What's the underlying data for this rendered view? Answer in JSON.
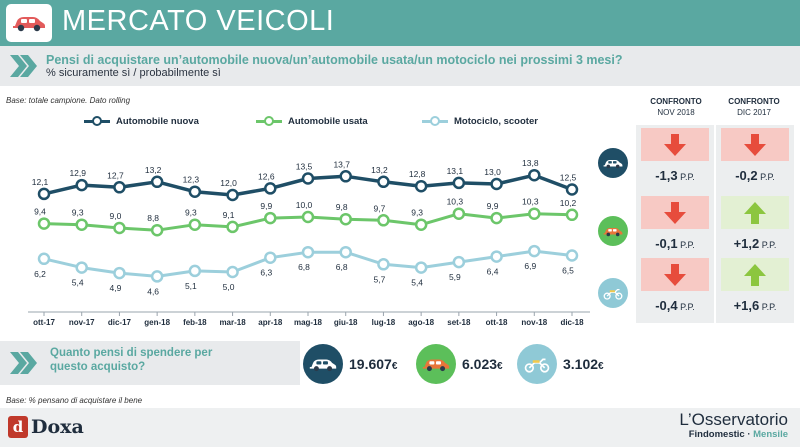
{
  "header": {
    "title": "MERCATO VEICOLI",
    "icon": "car-icon"
  },
  "question": {
    "text": "Pensi di acquistare un’automobile nuova/un’automobile usata/un motociclo nei prossimi 3 mesi?",
    "subtitle": "% sicuramente sì / probabilmente sì"
  },
  "base_note": "Base: totale campione. Dato rolling",
  "chart_data": {
    "type": "line",
    "x": [
      "ott-17",
      "nov-17",
      "dic-17",
      "gen-18",
      "feb-18",
      "mar-18",
      "apr-18",
      "mag-18",
      "giu-18",
      "lug-18",
      "ago-18",
      "set-18",
      "ott-18",
      "nov-18",
      "dic-18"
    ],
    "series": [
      {
        "name": "Automobile nuova",
        "color": "#1f4e66",
        "values": [
          12.1,
          12.9,
          12.7,
          13.2,
          12.3,
          12.0,
          12.6,
          13.5,
          13.7,
          13.2,
          12.8,
          13.1,
          13.0,
          13.8,
          12.5
        ],
        "labels": [
          "12,1",
          "12,9",
          "12,7",
          "13,2",
          "12,3",
          "12,0",
          "12,6",
          "13,5",
          "13,7",
          "13,2",
          "12,8",
          "13,1",
          "13,0",
          "13,8",
          "12,5"
        ]
      },
      {
        "name": "Automobile usata",
        "color": "#6cc66a",
        "values": [
          9.4,
          9.3,
          9.0,
          8.8,
          9.3,
          9.1,
          9.9,
          10.0,
          9.8,
          9.7,
          9.3,
          10.3,
          9.9,
          10.3,
          10.2
        ],
        "labels": [
          "9,4",
          "9,3",
          "9,0",
          "8,8",
          "9,3",
          "9,1",
          "9,9",
          "10,0",
          "9,8",
          "9,7",
          "9,3",
          "10,3",
          "9,9",
          "10,3",
          "10,2"
        ]
      },
      {
        "name": "Motociclo, scooter",
        "color": "#9ccfdc",
        "values": [
          6.2,
          5.4,
          4.9,
          4.6,
          5.1,
          5.0,
          6.3,
          6.8,
          6.8,
          5.7,
          5.4,
          5.9,
          6.4,
          6.9,
          6.5
        ],
        "labels": [
          "6,2",
          "5,4",
          "4,9",
          "4,6",
          "5,1",
          "5,0",
          "6,3",
          "6,8",
          "6,8",
          "5,7",
          "5,4",
          "5,9",
          "6,4",
          "6,9",
          "6,5"
        ]
      }
    ],
    "ylim": [
      3,
      15
    ],
    "grid": false,
    "legend": "top"
  },
  "confronto": {
    "headers": [
      {
        "title": "CONFRONTO",
        "sub": "NOV 2018"
      },
      {
        "title": "CONFRONTO",
        "sub": "DIC 2017"
      }
    ],
    "unit": "P.P.",
    "rows": [
      {
        "vehicle_icon": "car-icon",
        "circle_color": "#1f4e66",
        "cells": [
          {
            "value": "-1,3",
            "direction": "down"
          },
          {
            "value": "-0,2",
            "direction": "down"
          }
        ]
      },
      {
        "vehicle_icon": "used-car-icon",
        "circle_color": "#5cbf5a",
        "cells": [
          {
            "value": "-0,1",
            "direction": "down"
          },
          {
            "value": "+1,2",
            "direction": "up"
          }
        ]
      },
      {
        "vehicle_icon": "scooter-icon",
        "circle_color": "#8fc9d6",
        "cells": [
          {
            "value": "-0,4",
            "direction": "down"
          },
          {
            "value": "+1,6",
            "direction": "up"
          }
        ]
      }
    ],
    "colors": {
      "down_bg": "#f7c9c4",
      "down_arrow": "#e74c3c",
      "up_bg": "#e3f0d3",
      "up_arrow": "#8cc63f"
    }
  },
  "spend": {
    "question": "Quanto pensi di spendere per questo acquisto?",
    "currency": "€",
    "items": [
      {
        "icon": "car-icon",
        "value": "19.607",
        "circle_color": "#1f4e66"
      },
      {
        "icon": "used-car-icon",
        "value": "6.023",
        "circle_color": "#5cbf5a"
      },
      {
        "icon": "scooter-icon",
        "value": "3.102",
        "circle_color": "#8fc9d6"
      }
    ]
  },
  "base_note_2": "Base: % pensano di acquistare il bene",
  "footer": {
    "doxa": "Doxa",
    "oss_title": "L’Osservatorio",
    "oss_brand": "Findomestic",
    "oss_sep": " · ",
    "oss_mensile": "Mensile"
  }
}
